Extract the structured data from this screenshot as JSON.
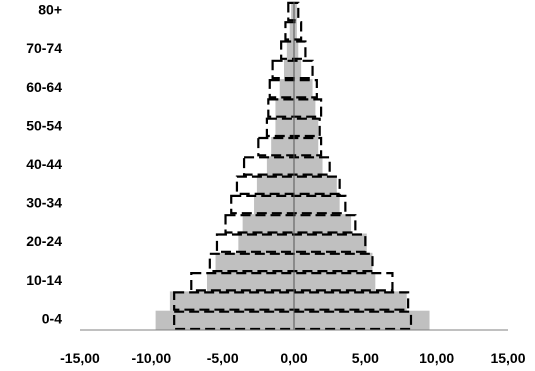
{
  "chart_data": {
    "type": "bar",
    "orientation": "horizontal",
    "subtype": "population-pyramid",
    "categories": [
      "0-4",
      "5-9",
      "10-14",
      "15-19",
      "20-24",
      "25-29",
      "30-34",
      "35-39",
      "40-44",
      "45-49",
      "50-54",
      "55-59",
      "60-64",
      "65-69",
      "70-74",
      "75-79",
      "80+"
    ],
    "category_tick_labels": [
      "0-4",
      "10-14",
      "20-24",
      "30-34",
      "40-44",
      "50-54",
      "60-64",
      "70-74",
      "80+"
    ],
    "x_tick_labels": [
      "-15,00",
      "-10,00",
      "-5,00",
      "0,00",
      "5,00",
      "10,00",
      "15,00"
    ],
    "xlim": [
      -15,
      15
    ],
    "series": [
      {
        "style": "filled-bar",
        "color": "#c0c0c0",
        "left": [
          -9.7,
          -8.7,
          -6.1,
          -5.5,
          -3.9,
          -3.6,
          -2.8,
          -2.6,
          -1.9,
          -1.6,
          -1.3,
          -1.3,
          -1.0,
          -0.7,
          -0.5,
          -0.3,
          -0.2
        ],
        "right": [
          9.5,
          7.9,
          5.7,
          5.5,
          5.1,
          4.0,
          3.2,
          3.0,
          2.0,
          1.7,
          1.7,
          1.5,
          1.3,
          0.5,
          0.3,
          0.2,
          0.2
        ]
      },
      {
        "style": "dashed-outline",
        "color": "#000000",
        "left": [
          -8.4,
          -8.4,
          -7.2,
          -5.9,
          -5.4,
          -4.8,
          -4.4,
          -4.0,
          -3.5,
          -2.5,
          -1.9,
          -1.8,
          -1.7,
          -1.5,
          -0.9,
          -0.6,
          -0.4
        ],
        "right": [
          8.2,
          8.0,
          6.9,
          5.5,
          5.0,
          4.3,
          3.6,
          3.2,
          2.5,
          1.9,
          1.8,
          1.9,
          1.6,
          1.3,
          0.8,
          0.5,
          0.3
        ]
      }
    ],
    "title": "",
    "xlabel": "",
    "ylabel": "",
    "grid": false,
    "legend": "none"
  }
}
